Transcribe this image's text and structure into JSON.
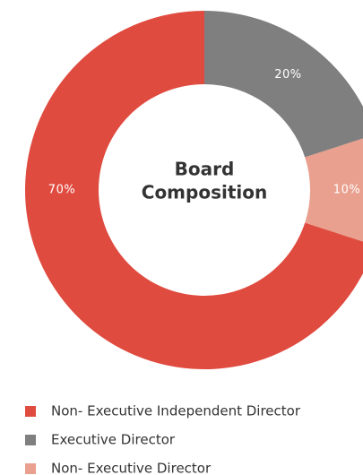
{
  "chart_data": {
    "type": "donut",
    "title": [
      "Board",
      "Composition"
    ],
    "categories": [
      "Non- Executive  Independent Director",
      "Executive Director",
      "Non- Executive Director"
    ],
    "values": [
      70,
      20,
      10
    ],
    "value_labels": [
      "70%",
      "20%",
      "10%"
    ],
    "colors": [
      "#e04b40",
      "#7f7f7f",
      "#e9a08f"
    ]
  }
}
